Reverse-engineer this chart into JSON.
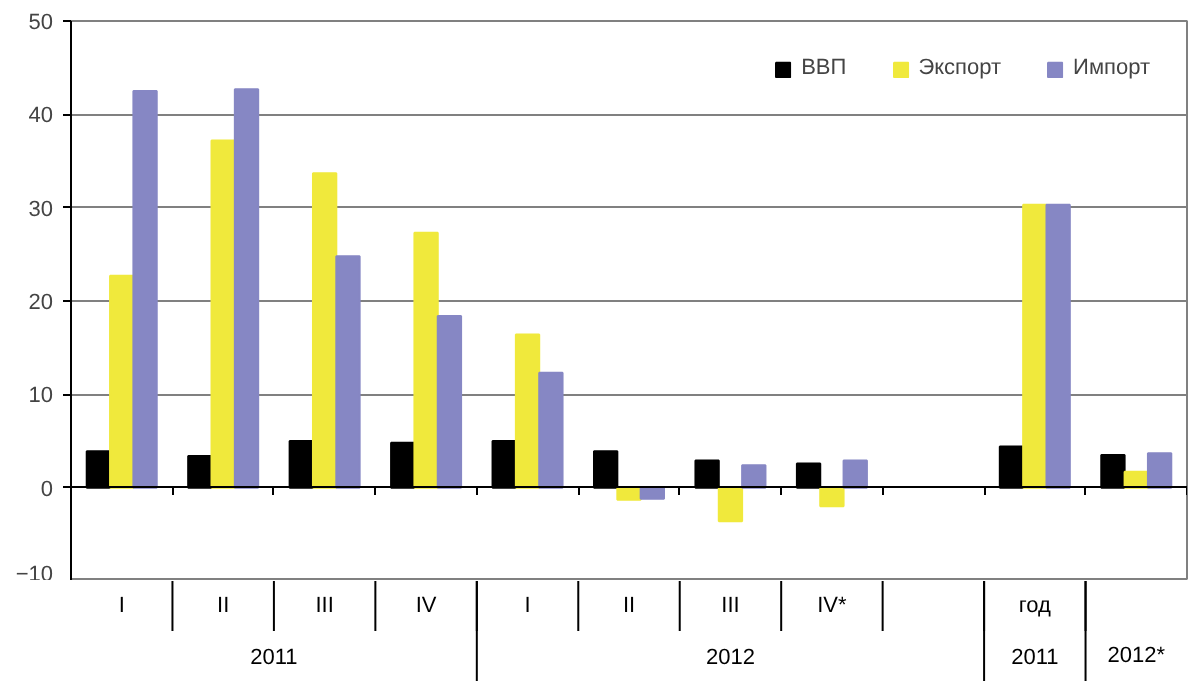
{
  "chart_data": {
    "type": "bar",
    "categories": [
      "I",
      "II",
      "III",
      "IV",
      "I",
      "II",
      "III",
      "IV*",
      null,
      "год",
      null
    ],
    "series": [
      {
        "name": "ВВП",
        "color": "#000000",
        "values": [
          3.9,
          3.4,
          5.0,
          4.8,
          5.0,
          3.9,
          2.9,
          2.6,
          null,
          4.4,
          3.5
        ]
      },
      {
        "name": "Экспорт",
        "color": "#f0e93c",
        "values": [
          22.7,
          37.2,
          33.7,
          27.3,
          16.4,
          -1.3,
          -3.6,
          -2.0,
          null,
          30.3,
          1.7
        ]
      },
      {
        "name": "Импорт",
        "color": "#8687c4",
        "values": [
          42.5,
          42.7,
          24.8,
          18.4,
          12.3,
          -1.2,
          2.4,
          2.9,
          null,
          30.3,
          3.7
        ]
      }
    ],
    "annotations": [
      "2011",
      "2012",
      "2011",
      "2012*"
    ],
    "ylim": [
      -10,
      50
    ],
    "yticks": [
      -10,
      0,
      10,
      20,
      30,
      40,
      50
    ],
    "grid": "y",
    "legend": "top right"
  }
}
